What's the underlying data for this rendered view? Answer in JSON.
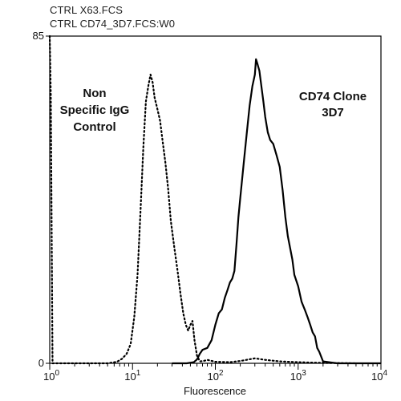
{
  "header": {
    "line1": "CTRL X63.FCS",
    "line2": "CTRL CD74_3D7.FCS:W0"
  },
  "chart_data": {
    "type": "line",
    "title": "",
    "xlabel": "Fluorescence",
    "ylabel": "",
    "xscale": "log",
    "xlim": [
      1,
      10000
    ],
    "ylim": [
      0,
      85
    ],
    "y_ticks": [
      0,
      85
    ],
    "x_ticks": [
      {
        "base": "10",
        "exp": "0"
      },
      {
        "base": "10",
        "exp": "1"
      },
      {
        "base": "10",
        "exp": "2"
      },
      {
        "base": "10",
        "exp": "3"
      },
      {
        "base": "10",
        "exp": "4"
      }
    ],
    "y_tick_labels": [
      "0",
      "85"
    ],
    "annotations": {
      "control": [
        "Non",
        "Specific IgG",
        "Control"
      ],
      "clone": [
        "CD74 Clone",
        "3D7"
      ]
    },
    "series": [
      {
        "style": "dotted",
        "x": [
          1.0,
          1.03,
          1.08,
          1.5,
          3,
          5,
          6.5,
          7.5,
          8.5,
          9.5,
          10.5,
          11.5,
          12.5,
          13.5,
          14.5,
          15.5,
          16.5,
          17.5,
          18.5,
          20,
          21.5,
          23,
          25,
          27,
          29,
          32,
          35,
          38,
          41,
          44,
          47,
          50,
          53,
          56,
          60,
          65,
          72,
          80,
          100,
          150,
          200,
          300,
          400,
          600,
          1000,
          2000,
          5000
        ],
        "y": [
          85,
          70,
          0,
          0,
          0,
          0,
          0.4,
          1.2,
          2.5,
          5,
          12,
          23,
          40,
          56,
          68,
          72,
          75,
          73,
          69,
          66,
          63,
          58,
          52,
          45,
          37,
          30,
          24,
          18,
          13,
          10,
          8.5,
          10,
          11,
          6,
          2,
          0.5,
          0.6,
          0.9,
          0.4,
          0.3,
          0.6,
          1.3,
          0.9,
          0.5,
          0.3,
          0.1,
          0
        ]
      },
      {
        "style": "solid",
        "x": [
          30,
          45,
          55,
          60,
          65,
          70,
          80,
          90,
          100,
          110,
          120,
          130,
          140,
          150,
          160,
          170,
          180,
          190,
          200,
          220,
          240,
          260,
          280,
          300,
          310,
          320,
          340,
          360,
          380,
          400,
          430,
          460,
          500,
          550,
          600,
          650,
          700,
          750,
          800,
          850,
          900,
          1000,
          1100,
          1200,
          1300,
          1400,
          1500,
          1600,
          1700,
          1800,
          2000,
          2500,
          3000,
          5000,
          10000
        ],
        "y": [
          0,
          0,
          0.3,
          1,
          2.5,
          3.5,
          4,
          6,
          10,
          13,
          14,
          17,
          19,
          21,
          22,
          24,
          31,
          38,
          43,
          52,
          60,
          67,
          72,
          75,
          79,
          78,
          76,
          72,
          68,
          64,
          60,
          58,
          57,
          54,
          51,
          45,
          38,
          33,
          30,
          27,
          23,
          20,
          16,
          14,
          12,
          10,
          8,
          7,
          4,
          3,
          0.5,
          0.2,
          0,
          0,
          0
        ]
      }
    ]
  }
}
